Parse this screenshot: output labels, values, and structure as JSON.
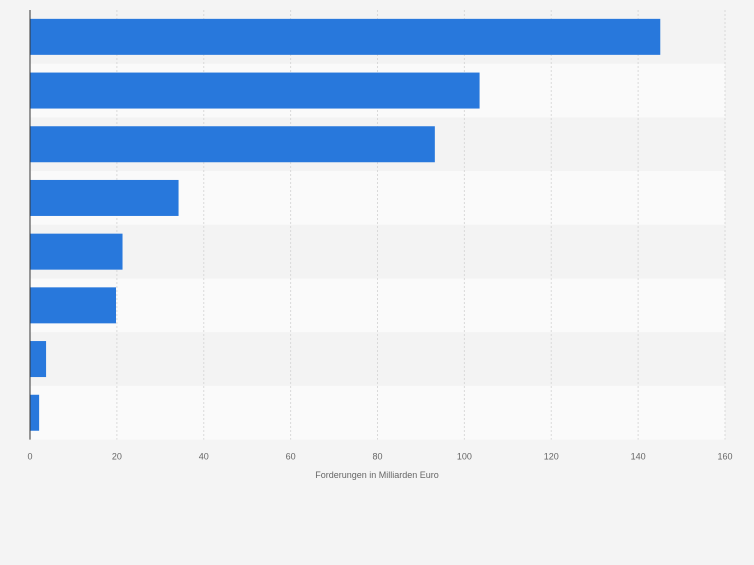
{
  "chart_data": {
    "type": "bar",
    "orientation": "horizontal",
    "title": "",
    "xlabel": "Forderungen in Milliarden Euro",
    "ylabel": "",
    "categories": [
      "",
      "",
      "",
      "",
      "",
      "",
      "",
      ""
    ],
    "values": [
      145.1,
      103.5,
      93.2,
      34.2,
      21.3,
      19.8,
      3.7,
      2.1
    ],
    "xlim": [
      0,
      160
    ],
    "xticks": [
      0,
      20,
      40,
      60,
      80,
      100,
      120,
      140,
      160
    ],
    "xtick_labels": [
      "0",
      "20",
      "40",
      "60",
      "80",
      "100",
      "120",
      "140",
      "160"
    ],
    "grid": true,
    "legend": "none"
  },
  "colors": {
    "bar": "#2878dc",
    "band_dark": "#f3f3f3",
    "band_light": "#fafafa",
    "grid": "#d9d9d9",
    "axis": "#333333",
    "tick_text": "#666666",
    "background": "#f4f4f4"
  }
}
